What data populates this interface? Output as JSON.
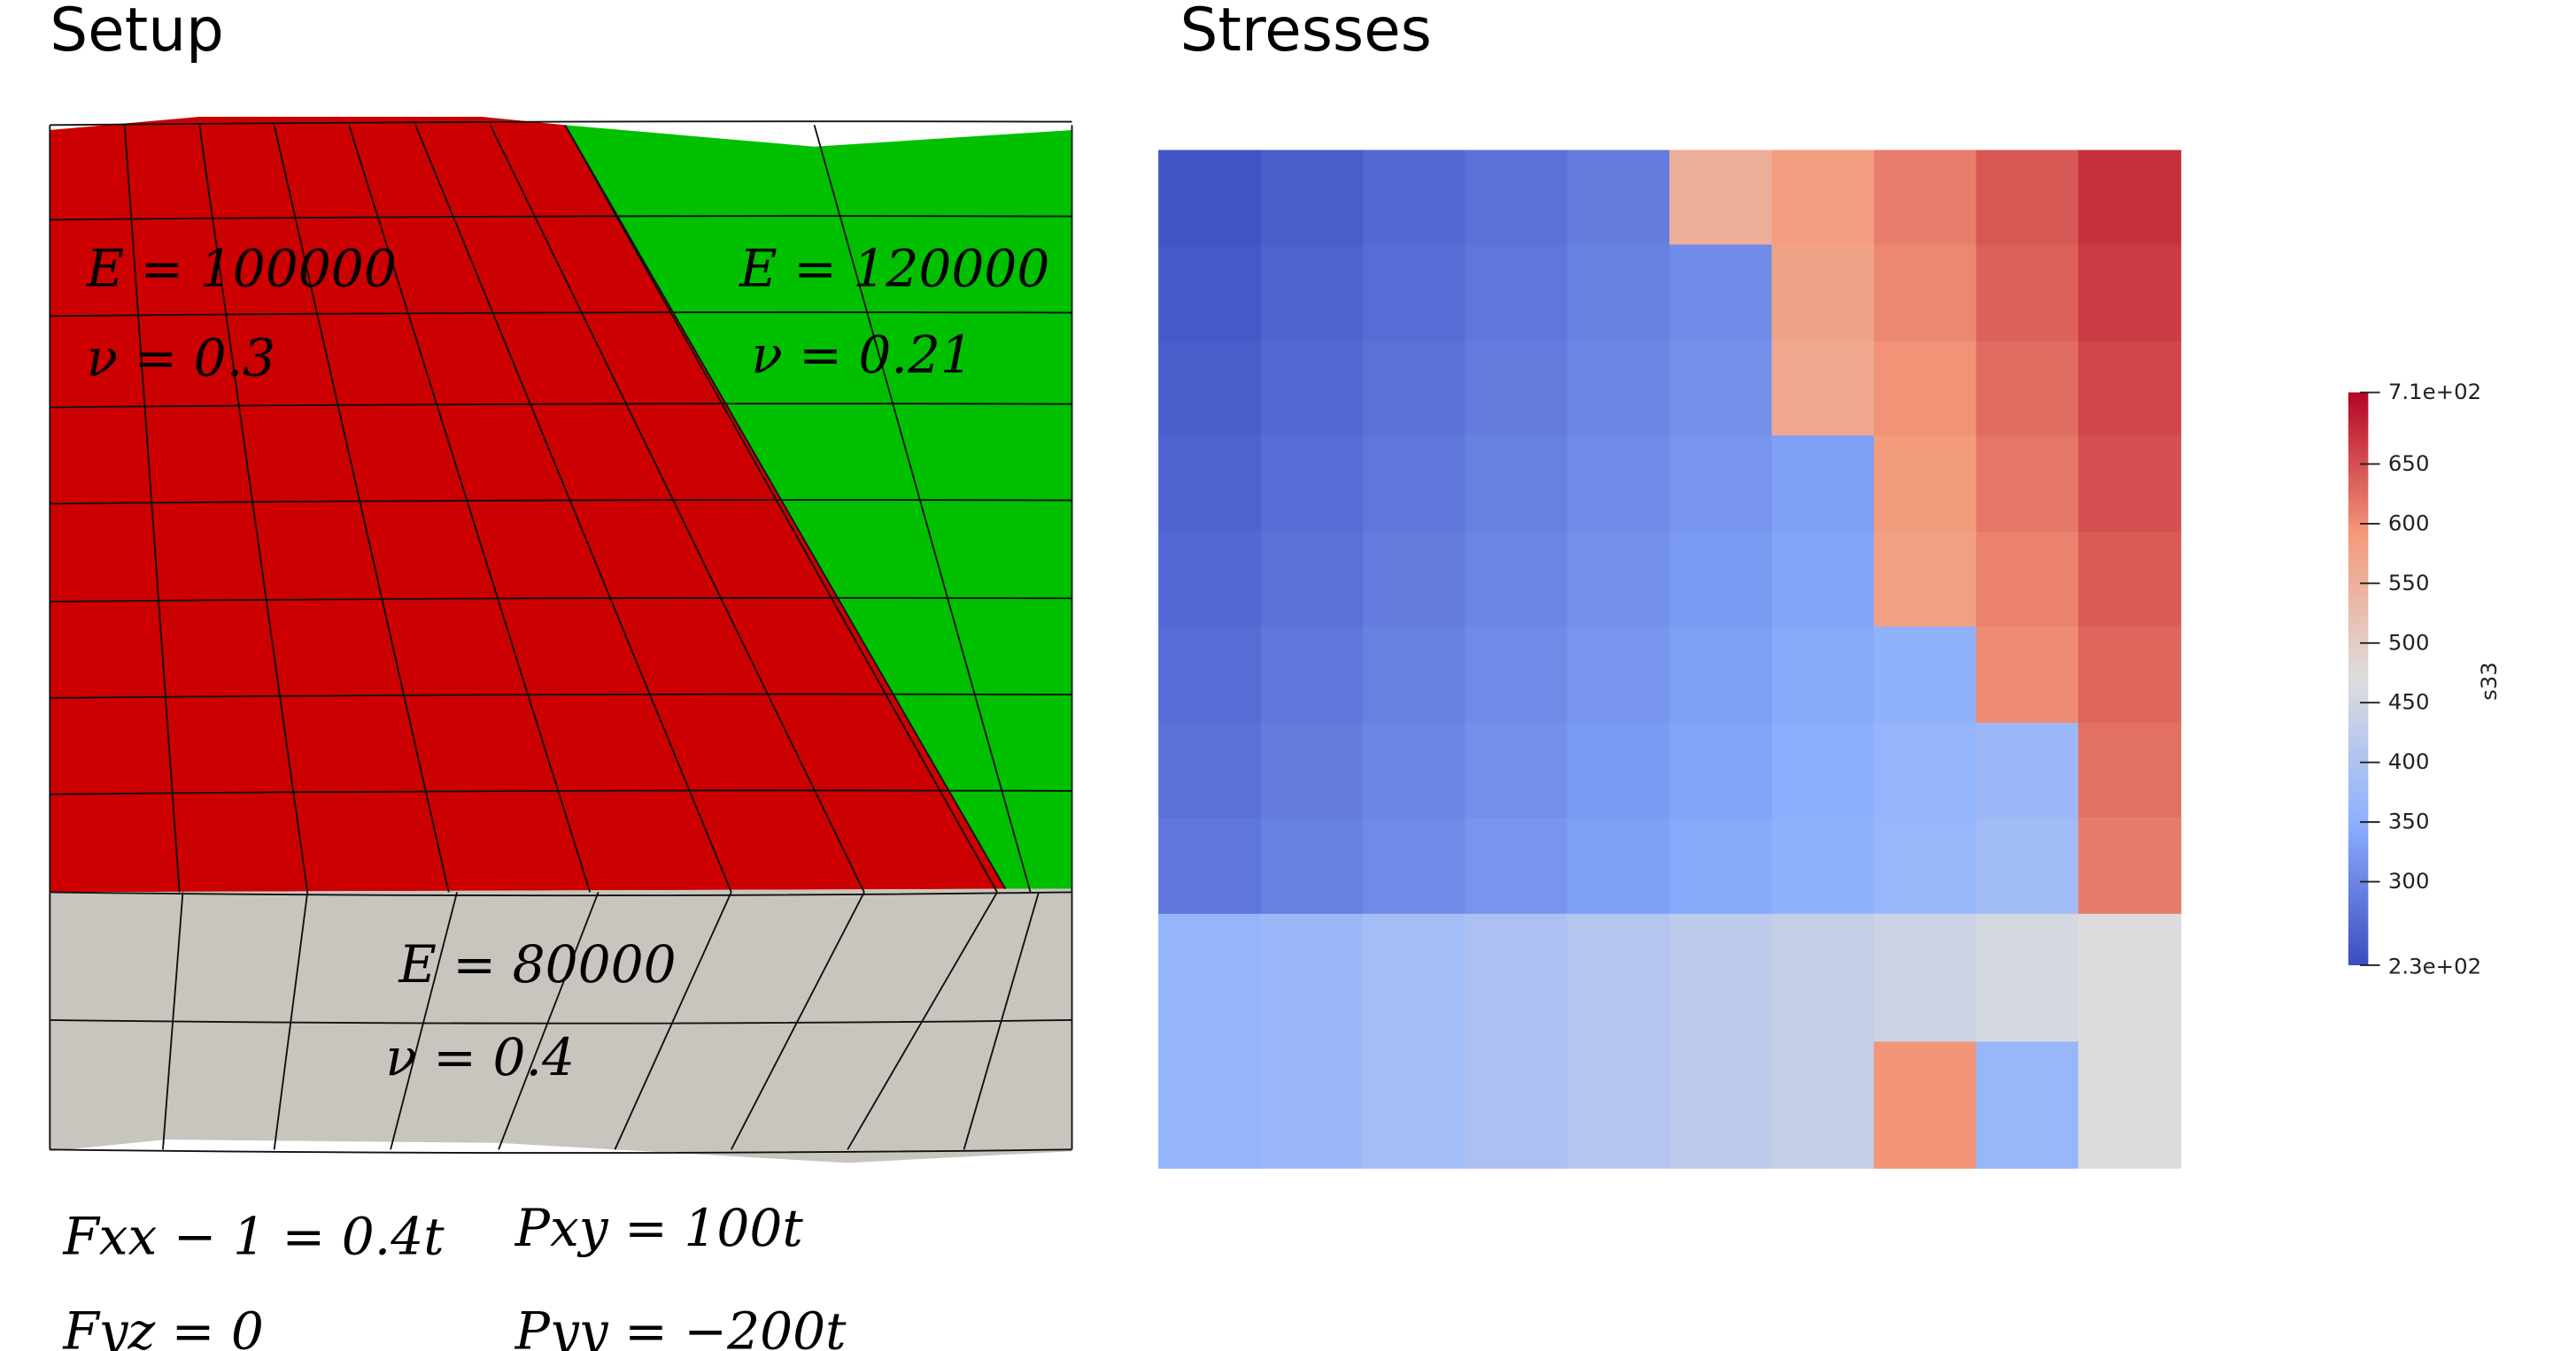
{
  "titles": {
    "setup": "Setup",
    "stresses": "Stresses"
  },
  "materials": [
    {
      "name": "top-left",
      "E": "E = 100000",
      "nu": "ν = 0.3",
      "color": "#cc0000"
    },
    {
      "name": "top-right",
      "E": "E = 120000",
      "nu": "ν = 0.21",
      "color": "#00c000"
    },
    {
      "name": "bottom",
      "E": "E = 80000",
      "nu": "ν = 0.4",
      "color": "#c8c5be"
    }
  ],
  "loads": {
    "fxx": "Fxx − 1 = 0.4t",
    "fyz": "Fyz = 0",
    "pxy": "Pxy = 100t",
    "pyy": "Pyy = −200t"
  },
  "colorbar": {
    "label": "s33",
    "max_label": "7.1e+02",
    "min_label": "2.3e+02",
    "ticks": [
      "650",
      "600",
      "550",
      "500",
      "450",
      "400",
      "350",
      "300"
    ],
    "range": [
      230,
      710
    ],
    "colors": {
      "low": "#3b4cc0",
      "mid": "#dddddd",
      "high": "#b40426"
    }
  }
}
